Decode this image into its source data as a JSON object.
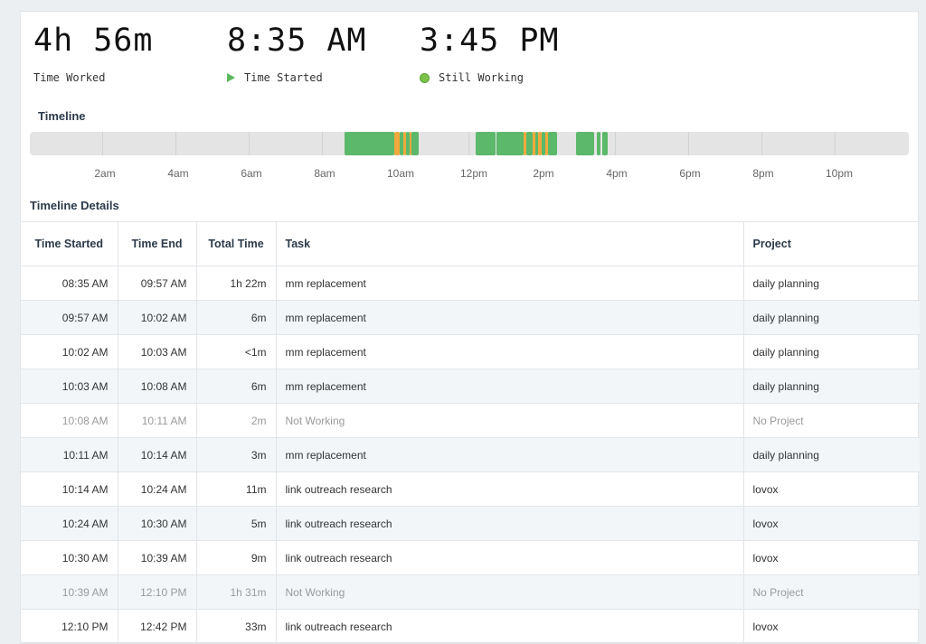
{
  "stats": [
    {
      "value": "4h 56m",
      "label": "Time Worked",
      "icon": ""
    },
    {
      "value": "8:35 AM",
      "label": "Time Started",
      "icon": "play-icon"
    },
    {
      "value": "3:45 PM",
      "label": "Still Working",
      "icon": "status-dot-icon"
    }
  ],
  "timeline": {
    "title": "Timeline",
    "axis_labels": [
      "2am",
      "4am",
      "6am",
      "8am",
      "10am",
      "12pm",
      "2pm",
      "4pm",
      "6pm",
      "8pm",
      "10pm"
    ],
    "colors": {
      "track": "#e4e4e4",
      "working": "#5cb86a",
      "switch": "#f0a93c"
    }
  },
  "details": {
    "title": "Timeline Details",
    "columns": [
      "Time Started",
      "Time End",
      "Total Time",
      "Task",
      "Project"
    ],
    "rows": [
      {
        "start": "08:35 AM",
        "end": "09:57 AM",
        "total": "1h 22m",
        "task": "mm replacement",
        "project": "daily planning",
        "muted": false
      },
      {
        "start": "09:57 AM",
        "end": "10:02 AM",
        "total": "6m",
        "task": "mm replacement",
        "project": "daily planning",
        "muted": false
      },
      {
        "start": "10:02 AM",
        "end": "10:03 AM",
        "total": "<1m",
        "task": "mm replacement",
        "project": "daily planning",
        "muted": false
      },
      {
        "start": "10:03 AM",
        "end": "10:08 AM",
        "total": "6m",
        "task": "mm replacement",
        "project": "daily planning",
        "muted": false
      },
      {
        "start": "10:08 AM",
        "end": "10:11 AM",
        "total": "2m",
        "task": "Not Working",
        "project": "No Project",
        "muted": true
      },
      {
        "start": "10:11 AM",
        "end": "10:14 AM",
        "total": "3m",
        "task": "mm replacement",
        "project": "daily planning",
        "muted": false
      },
      {
        "start": "10:14 AM",
        "end": "10:24 AM",
        "total": "11m",
        "task": "link outreach research",
        "project": "lovox",
        "muted": false
      },
      {
        "start": "10:24 AM",
        "end": "10:30 AM",
        "total": "5m",
        "task": "link outreach research",
        "project": "lovox",
        "muted": false
      },
      {
        "start": "10:30 AM",
        "end": "10:39 AM",
        "total": "9m",
        "task": "link outreach research",
        "project": "lovox",
        "muted": false
      },
      {
        "start": "10:39 AM",
        "end": "12:10 PM",
        "total": "1h 31m",
        "task": "Not Working",
        "project": "No Project",
        "muted": true
      },
      {
        "start": "12:10 PM",
        "end": "12:42 PM",
        "total": "33m",
        "task": "link outreach research",
        "project": "lovox",
        "muted": false
      }
    ]
  }
}
